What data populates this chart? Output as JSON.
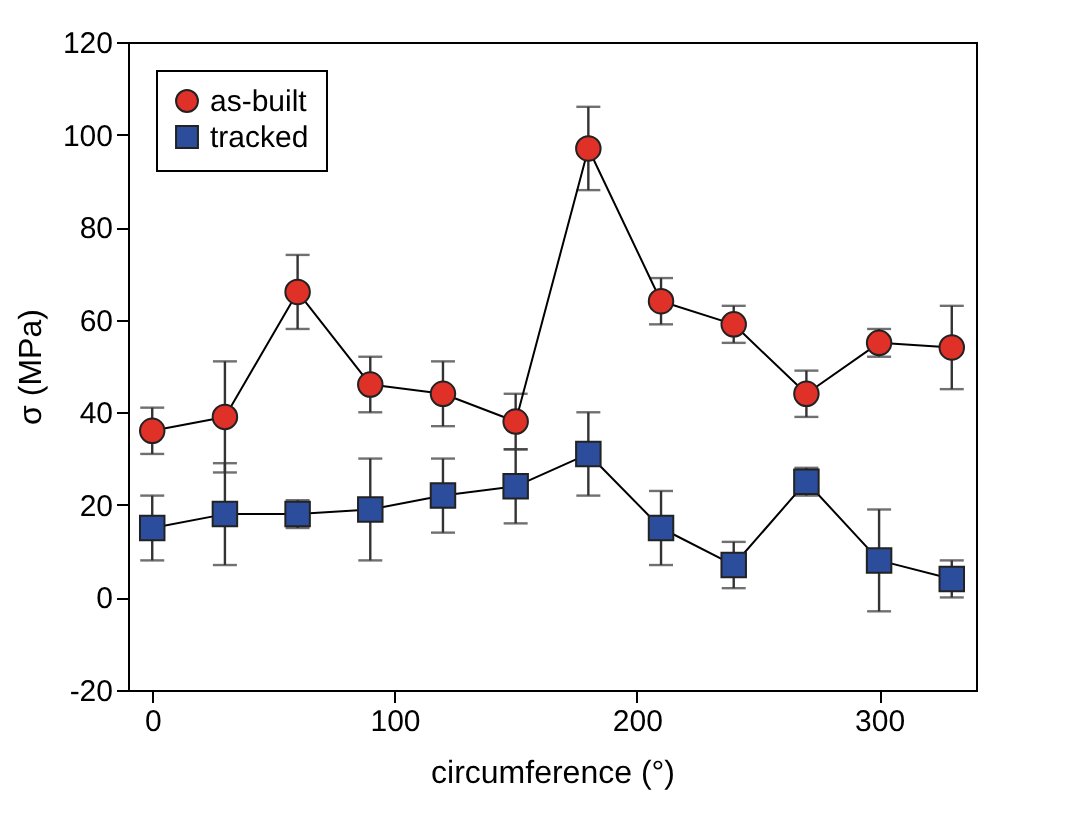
{
  "chart_data": {
    "type": "line",
    "xlabel": "circumference (°)",
    "ylabel": "σ (MPa)",
    "x": [
      0,
      30,
      60,
      90,
      120,
      150,
      180,
      210,
      240,
      270,
      300,
      330
    ],
    "xlim": [
      -10,
      340
    ],
    "xticks": [
      0,
      100,
      200,
      300
    ],
    "ylim": [
      -20,
      120
    ],
    "yticks": [
      -20,
      0,
      20,
      40,
      60,
      80,
      100,
      120
    ],
    "grid": false,
    "legend": "top left",
    "series": [
      {
        "name": "as-built",
        "color": "#e03128",
        "marker": "circle",
        "values": [
          36,
          39,
          66,
          46,
          44,
          38,
          97,
          64,
          59,
          44,
          55,
          54
        ],
        "errors": [
          5,
          12,
          8,
          6,
          7,
          6,
          9,
          5,
          4,
          5,
          3,
          9
        ]
      },
      {
        "name": "tracked",
        "color": "#2b4d9c",
        "marker": "square",
        "values": [
          15,
          18,
          18,
          19,
          22,
          24,
          31,
          15,
          7,
          25,
          8,
          4
        ],
        "errors": [
          7,
          11,
          3,
          11,
          8,
          8,
          9,
          8,
          5,
          3,
          11,
          4
        ]
      }
    ]
  }
}
